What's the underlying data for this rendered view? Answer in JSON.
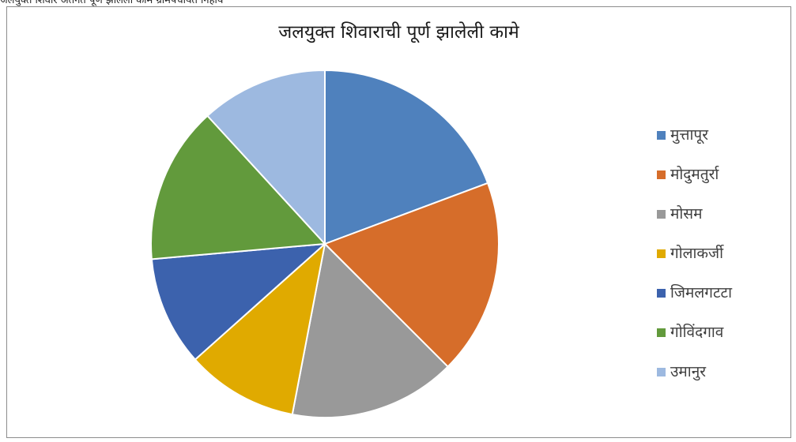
{
  "caption_fragment": "जलयुक्त शिवार अंतर्गत पूर्ण झालेली कामे ग्रामपंचायत निहाय",
  "chart_data": {
    "type": "pie",
    "title": "जलयुक्त शिवाराची पूर्ण झालेली कामे",
    "legend_position": "right",
    "start_angle_deg": 0,
    "direction": "clockwise",
    "slices": [
      {
        "label": "मुत्तापूर",
        "value": 19.3,
        "color": "#4f81bd"
      },
      {
        "label": "मोदुमतुर्रा",
        "value": 18.2,
        "color": "#d66d2a"
      },
      {
        "label": "मोसम",
        "value": 15.5,
        "color": "#999999"
      },
      {
        "label": "गोलाकर्जी",
        "value": 10.4,
        "color": "#e0aa00"
      },
      {
        "label": "जिमलगटटा",
        "value": 10.2,
        "color": "#3c62ad"
      },
      {
        "label": "गोविंदगाव",
        "value": 14.6,
        "color": "#629a3c"
      },
      {
        "label": "उमानुर",
        "value": 11.8,
        "color": "#9db9e0"
      }
    ]
  }
}
